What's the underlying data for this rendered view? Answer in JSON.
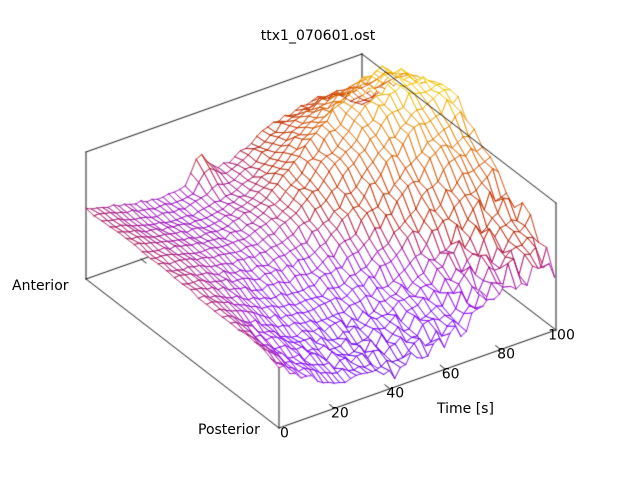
{
  "page": {
    "background": "#ffffff"
  },
  "chart_data": {
    "type": "surface3d_wireframe",
    "title": "ttx1_070601.ost",
    "x_axis": {
      "label": "Time [s]",
      "range": [
        0,
        100
      ],
      "ticks": [
        0,
        20,
        40,
        60,
        80,
        100
      ],
      "tick_labels": [
        "0",
        "20",
        "40",
        "60",
        "80",
        "100"
      ]
    },
    "y_axis": {
      "end_labels": [
        "Posterior",
        "Anterior"
      ]
    },
    "z_axis": {
      "ticks": [],
      "tick_labels": []
    },
    "legend": "none",
    "grid_lines": "none",
    "palette": {
      "name": "pm3d-rgbformulae-7-5-15",
      "low_color": "#8a07f2",
      "mid_color": "#af1a30",
      "high_color": "#f0d000",
      "c_offset": 0.07,
      "c_scale": 0.67,
      "c_min": 0.1,
      "c_max": 0.96
    },
    "surface": {
      "rows": 9,
      "cols": 18,
      "row0": "posterior",
      "row_last": "anterior",
      "col0_time": 0,
      "col_last_time": 100,
      "z_values_pct": [
        [
          50,
          38,
          30,
          24,
          20,
          18,
          17,
          10,
          18,
          20,
          23,
          27,
          32,
          38,
          46,
          52,
          50,
          48
        ],
        [
          52,
          42,
          33,
          27,
          23,
          20,
          19,
          18,
          20,
          22,
          26,
          30,
          36,
          44,
          52,
          60,
          64,
          68
        ],
        [
          53,
          46,
          38,
          31,
          26,
          23,
          22,
          21,
          23,
          26,
          30,
          36,
          44,
          54,
          64,
          74,
          80,
          84
        ],
        [
          54,
          50,
          44,
          38,
          33,
          30,
          29,
          29,
          31,
          35,
          42,
          52,
          62,
          74,
          86,
          96,
          100,
          102
        ],
        [
          55,
          52,
          48,
          44,
          40,
          38,
          38,
          39,
          43,
          50,
          60,
          72,
          84,
          96,
          108,
          116,
          122,
          125
        ],
        [
          55,
          53,
          50,
          47,
          45,
          44,
          45,
          48,
          54,
          63,
          74,
          86,
          98,
          110,
          122,
          130,
          128,
          122
        ],
        [
          56,
          53,
          50,
          47,
          45,
          44,
          46,
          50,
          57,
          67,
          79,
          92,
          103,
          112,
          120,
          126,
          122,
          112
        ],
        [
          56,
          52,
          48,
          45,
          43,
          42,
          44,
          46,
          50,
          58,
          68,
          78,
          86,
          92,
          96,
          98,
          94,
          84
        ],
        [
          55,
          52,
          49,
          46,
          44,
          43,
          44,
          68,
          49,
          54,
          60,
          67,
          72,
          76,
          78,
          76,
          70,
          60
        ]
      ],
      "jitter_amp_pct": [
        10,
        9,
        7,
        5,
        5,
        4,
        4,
        3,
        3
      ],
      "render_rows": 25,
      "render_cols": 51
    }
  }
}
